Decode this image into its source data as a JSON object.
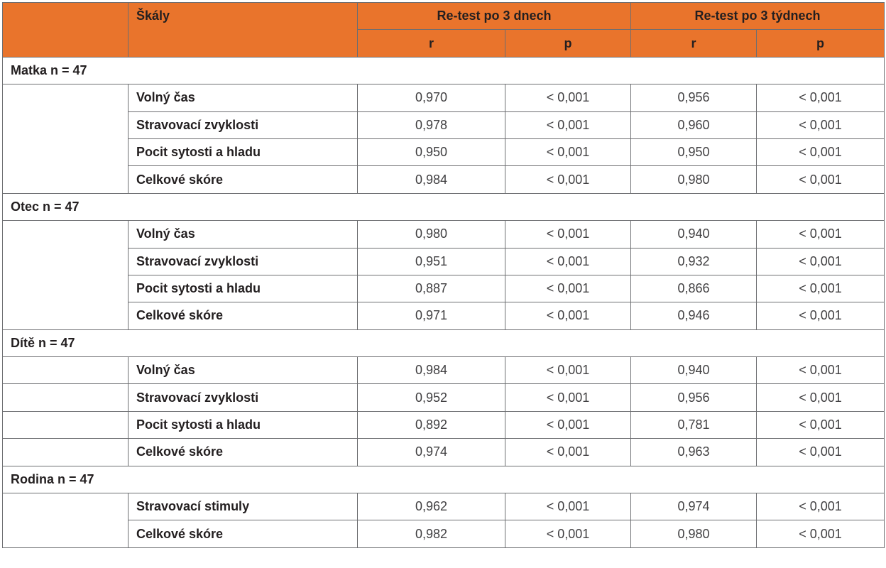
{
  "header": {
    "scales_label": "Škály",
    "retest_3_days": "Re-test po 3 dnech",
    "retest_3_weeks": "Re-test po 3 týdnech",
    "r_label": "r",
    "p_label": "p"
  },
  "groups": [
    {
      "label": "Matka n = 47",
      "rows": [
        {
          "scale": "Volný čas",
          "r3d": "0,970",
          "p3d": "< 0,001",
          "r3w": "0,956",
          "p3w": "< 0,001"
        },
        {
          "scale": "Stravovací zvyklosti",
          "r3d": "0,978",
          "p3d": "< 0,001",
          "r3w": "0,960",
          "p3w": "< 0,001"
        },
        {
          "scale": "Pocit sytosti a hladu",
          "r3d": "0,950",
          "p3d": "< 0,001",
          "r3w": "0,950",
          "p3w": "< 0,001"
        },
        {
          "scale": "Celkové skóre",
          "r3d": "0,984",
          "p3d": "< 0,001",
          "r3w": "0,980",
          "p3w": "< 0,001"
        }
      ]
    },
    {
      "label": "Otec n = 47",
      "rows": [
        {
          "scale": "Volný čas",
          "r3d": "0,980",
          "p3d": "< 0,001",
          "r3w": "0,940",
          "p3w": "< 0,001"
        },
        {
          "scale": "Stravovací zvyklosti",
          "r3d": "0,951",
          "p3d": "< 0,001",
          "r3w": "0,932",
          "p3w": "< 0,001"
        },
        {
          "scale": "Pocit sytosti a hladu",
          "r3d": "0,887",
          "p3d": "< 0,001",
          "r3w": "0,866",
          "p3w": "< 0,001"
        },
        {
          "scale": "Celkové skóre",
          "r3d": "0,971",
          "p3d": "< 0,001",
          "r3w": "0,946",
          "p3w": "< 0,001"
        }
      ]
    },
    {
      "label": "Dítě n = 47",
      "rows": [
        {
          "scale": "Volný čas",
          "r3d": "0,984",
          "p3d": "< 0,001",
          "r3w": "0,940",
          "p3w": "< 0,001"
        },
        {
          "scale": "Stravovací zvyklosti",
          "r3d": "0,952",
          "p3d": "< 0,001",
          "r3w": "0,956",
          "p3w": "< 0,001"
        },
        {
          "scale": "Pocit sytosti a hladu",
          "r3d": "0,892",
          "p3d": "< 0,001",
          "r3w": "0,781",
          "p3w": "< 0,001"
        },
        {
          "scale": "Celkové skóre",
          "r3d": "0,974",
          "p3d": "< 0,001",
          "r3w": "0,963",
          "p3w": "< 0,001"
        }
      ]
    },
    {
      "label": "Rodina n = 47",
      "rows": [
        {
          "scale": "Stravovací stimuly",
          "r3d": "0,962",
          "p3d": "< 0,001",
          "r3w": "0,974",
          "p3w": "< 0,001"
        },
        {
          "scale": "Celkové skóre",
          "r3d": "0,982",
          "p3d": "< 0,001",
          "r3w": "0,980",
          "p3w": "< 0,001"
        }
      ]
    }
  ],
  "colors": {
    "header_bg": "#e9742c",
    "border": "#6d6e71"
  }
}
